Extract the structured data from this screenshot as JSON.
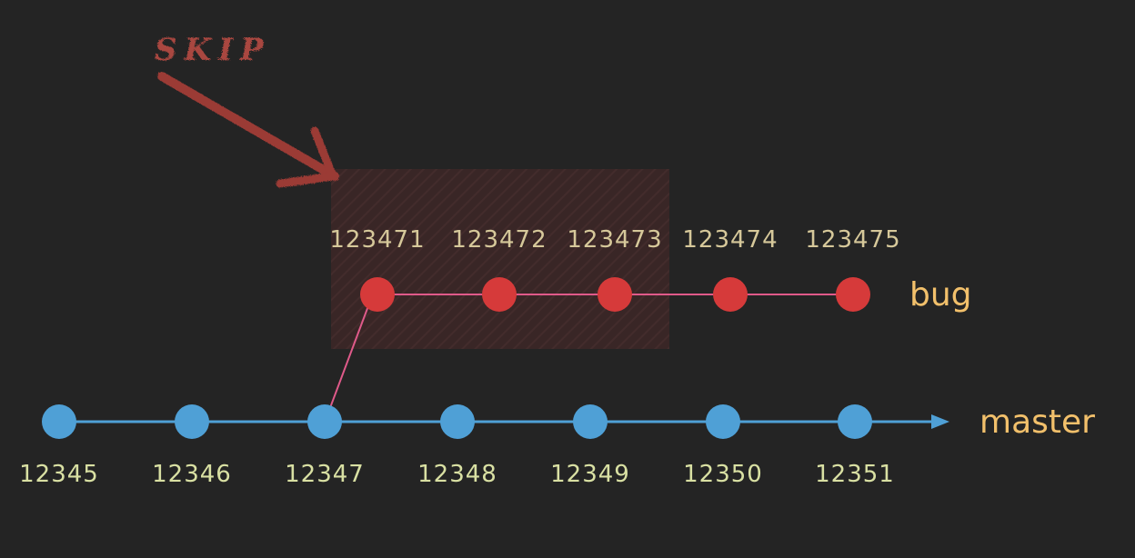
{
  "annotation": {
    "label": "SKIP",
    "color": "#a9463f"
  },
  "branches": {
    "master": {
      "name": "master",
      "color": "#4fa0d6",
      "commits": [
        "12345",
        "12346",
        "12347",
        "12348",
        "12349",
        "12350",
        "12351"
      ]
    },
    "bug": {
      "name": "bug",
      "color": "#d63a3a",
      "commits": [
        "123471",
        "123472",
        "123473",
        "123474",
        "123475"
      ],
      "skipped": [
        "123471",
        "123472",
        "123473"
      ]
    }
  },
  "colors": {
    "background": "#242424",
    "branch_label": "#f2c06b",
    "link_line": "#e05a8a"
  }
}
